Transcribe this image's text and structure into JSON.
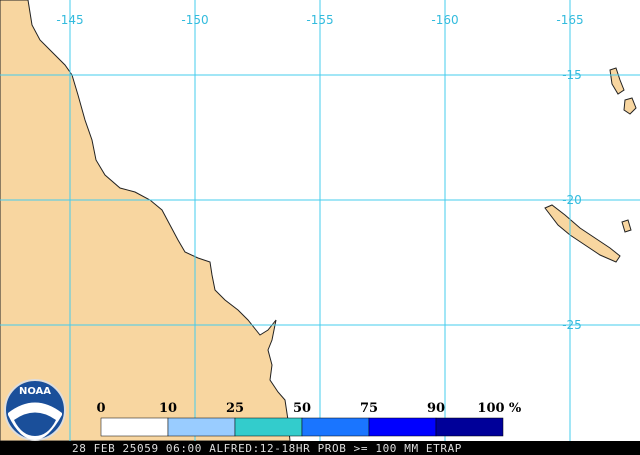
{
  "map": {
    "longitude_labels": [
      "-145",
      "-150",
      "-155",
      "-160",
      "-165"
    ],
    "latitude_labels": [
      "-15",
      "-20",
      "-25"
    ]
  },
  "legend": {
    "labels": [
      "0",
      "10",
      "25",
      "50",
      "75",
      "90",
      "100"
    ],
    "unit": "%",
    "colors": [
      "#ffffff",
      "#99ccff",
      "#33cccc",
      "#1a75ff",
      "#0000ff",
      "#000099"
    ]
  },
  "logo": "NOAA",
  "footer": "28 FEB 25059 06:00 ALFRED:12-18HR PROB >= 100 MM ETRAP"
}
